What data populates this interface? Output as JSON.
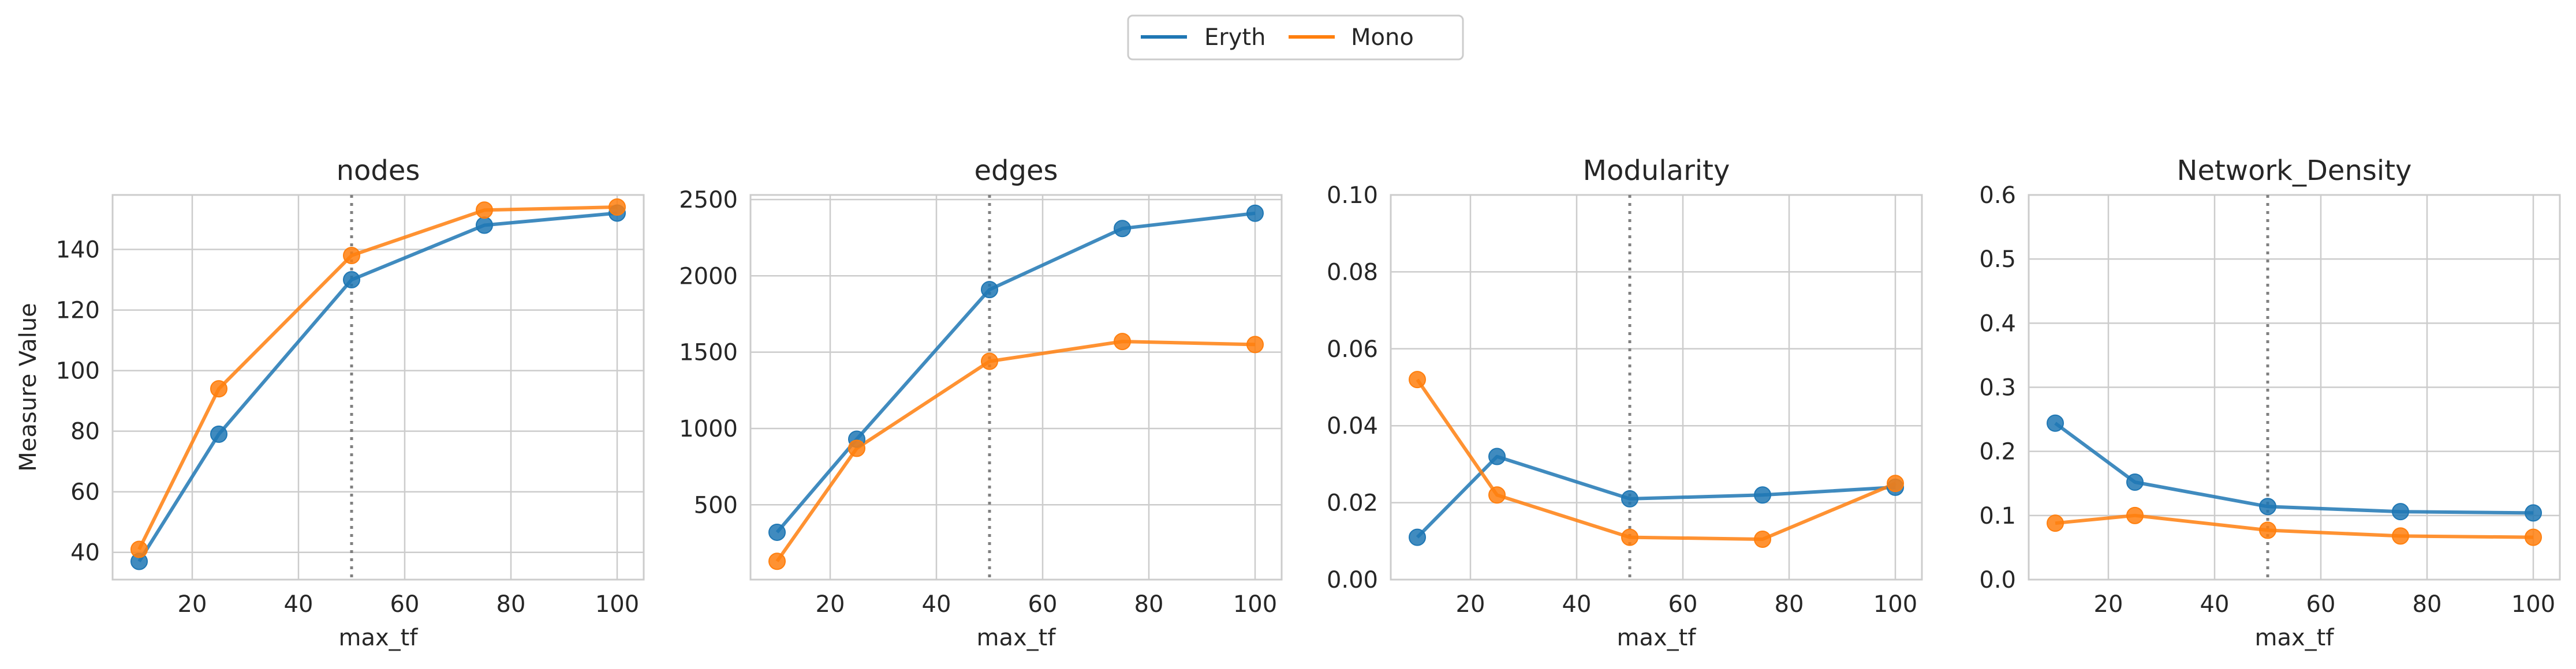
{
  "legend": {
    "entries": [
      {
        "name": "Eryth",
        "color": "#1f77b4"
      },
      {
        "name": "Mono",
        "color": "#ff7f0e"
      }
    ]
  },
  "chart_data": [
    {
      "type": "line",
      "title": "nodes",
      "xlabel": "max_tf",
      "ylabel": "Measure Value",
      "x": [
        10,
        25,
        50,
        75,
        100
      ],
      "xlim": [
        5,
        105
      ],
      "ylim": [
        31,
        158
      ],
      "xticks": [
        20,
        40,
        60,
        80,
        100
      ],
      "yticks": [
        40,
        60,
        80,
        100,
        120,
        140
      ],
      "vline_x": 50,
      "grid": true,
      "series": [
        {
          "name": "Eryth",
          "values": [
            37,
            79,
            130,
            148,
            152
          ]
        },
        {
          "name": "Mono",
          "values": [
            41,
            94,
            138,
            153,
            154
          ]
        }
      ]
    },
    {
      "type": "line",
      "title": "edges",
      "xlabel": "max_tf",
      "ylabel": "",
      "x": [
        10,
        25,
        50,
        75,
        100
      ],
      "xlim": [
        5,
        105
      ],
      "ylim": [
        10,
        2530
      ],
      "xticks": [
        20,
        40,
        60,
        80,
        100
      ],
      "yticks": [
        500,
        1000,
        1500,
        2000,
        2500
      ],
      "vline_x": 50,
      "grid": true,
      "series": [
        {
          "name": "Eryth",
          "values": [
            320,
            930,
            1910,
            2310,
            2410
          ]
        },
        {
          "name": "Mono",
          "values": [
            130,
            870,
            1440,
            1570,
            1550
          ]
        }
      ]
    },
    {
      "type": "line",
      "title": "Modularity",
      "xlabel": "max_tf",
      "ylabel": "",
      "x": [
        10,
        25,
        50,
        75,
        100
      ],
      "xlim": [
        5,
        105
      ],
      "ylim": [
        0,
        0.1
      ],
      "xticks": [
        20,
        40,
        60,
        80,
        100
      ],
      "yticks": [
        "0.00",
        "0.02",
        "0.04",
        "0.06",
        "0.08",
        "0.10"
      ],
      "vline_x": 50,
      "grid": true,
      "series": [
        {
          "name": "Eryth",
          "values": [
            0.011,
            0.032,
            0.021,
            0.022,
            0.024
          ]
        },
        {
          "name": "Mono",
          "values": [
            0.052,
            0.022,
            0.011,
            0.0105,
            0.025
          ]
        }
      ]
    },
    {
      "type": "line",
      "title": "Network_Density",
      "xlabel": "max_tf",
      "ylabel": "",
      "x": [
        10,
        25,
        50,
        75,
        100
      ],
      "xlim": [
        5,
        105
      ],
      "ylim": [
        0,
        0.6
      ],
      "xticks": [
        20,
        40,
        60,
        80,
        100
      ],
      "yticks": [
        "0.0",
        "0.1",
        "0.2",
        "0.3",
        "0.4",
        "0.5",
        "0.6"
      ],
      "vline_x": 50,
      "grid": true,
      "series": [
        {
          "name": "Eryth",
          "values": [
            0.244,
            0.152,
            0.114,
            0.106,
            0.104
          ]
        },
        {
          "name": "Mono",
          "values": [
            0.088,
            0.1,
            0.077,
            0.068,
            0.066
          ]
        }
      ]
    }
  ]
}
